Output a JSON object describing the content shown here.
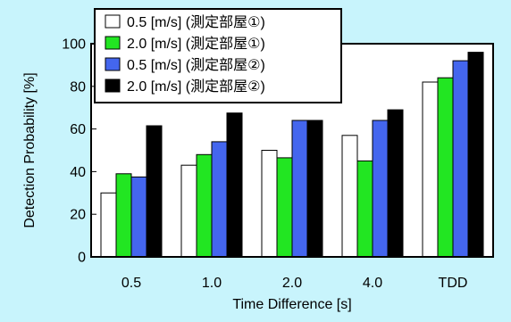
{
  "chart_data": {
    "type": "bar",
    "title": "",
    "xlabel": "Time Difference [s]",
    "ylabel": "Detection Probability [%]",
    "ylim": [
      0,
      100
    ],
    "yticks": [
      0,
      20,
      40,
      60,
      80,
      100
    ],
    "grid": false,
    "legend_position": "top-left",
    "categories": [
      "0.5",
      "1.0",
      "2.0",
      "4.0",
      "TDD"
    ],
    "series": [
      {
        "name": "0.5 [m/s] (測定部屋①)",
        "color": "#ffffff",
        "values": [
          30,
          43,
          50,
          57,
          82
        ]
      },
      {
        "name": "2.0 [m/s] (測定部屋①)",
        "color": "#22e622",
        "values": [
          39,
          48,
          46.5,
          45,
          84
        ]
      },
      {
        "name": "0.5 [m/s] (測定部屋②)",
        "color": "#4466ee",
        "values": [
          37.5,
          54,
          64,
          64,
          92
        ]
      },
      {
        "name": "2.0 [m/s] (測定部屋②)",
        "color": "#000000",
        "values": [
          61.5,
          67.5,
          64,
          69,
          96
        ]
      }
    ]
  }
}
